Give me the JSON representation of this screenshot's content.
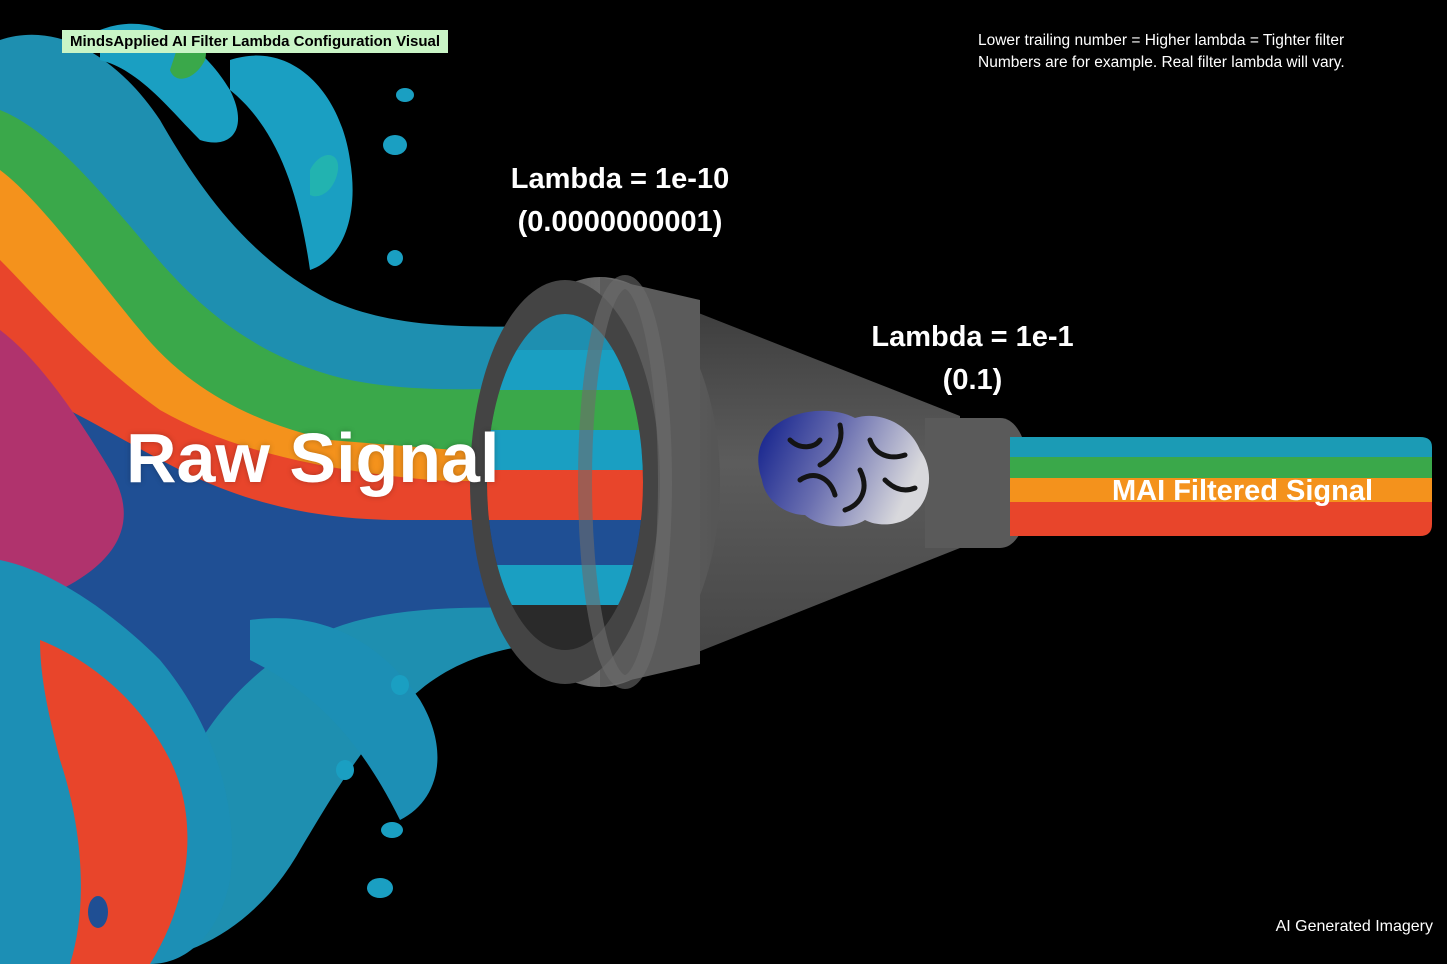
{
  "header": {
    "title": "MindsApplied AI Filter Lambda Configuration Visual",
    "note_line1": "Lower trailing number = Higher lambda = Tighter filter",
    "note_line2": "Numbers are for example. Real filter lambda will vary."
  },
  "filter": {
    "inlet_lambda": "Lambda = 1e-10",
    "inlet_value": "(0.0000000001)",
    "outlet_lambda": "Lambda = 1e-1",
    "outlet_value": "(0.1)",
    "icon": "brain-icon",
    "body_color": "#5f5f5f"
  },
  "signals": {
    "raw_label": "Raw Signal",
    "filtered_label": "MAI Filtered Signal",
    "filtered_colors": [
      "#1b9bb5",
      "#3aa84a",
      "#f4921c",
      "#e8452b"
    ]
  },
  "footer": {
    "credit": "AI Generated Imagery"
  }
}
